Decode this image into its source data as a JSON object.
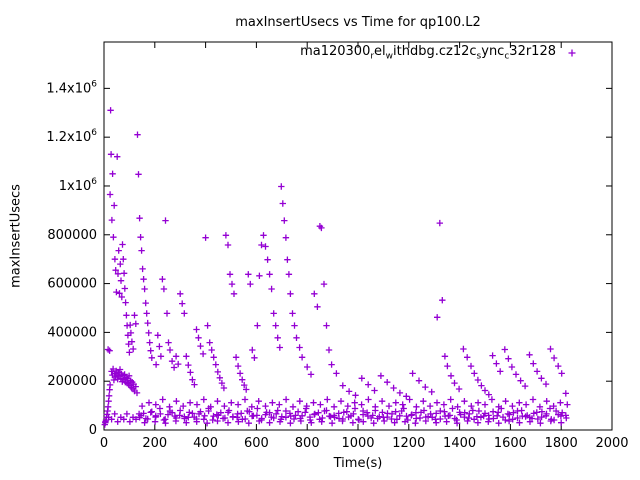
{
  "chart_data": {
    "type": "scatter",
    "title": "maxInsertUsecs vs Time for qp100.L2",
    "xlabel": "Time(s)",
    "ylabel": "maxInsertUsecs",
    "xlim": [
      0,
      2000
    ],
    "ylim": [
      0,
      1590000
    ],
    "grid": false,
    "legend_position": "top-center-inside",
    "series_color": "#9400d3",
    "marker": "plus",
    "x_ticks": [
      {
        "v": 0,
        "label": "0"
      },
      {
        "v": 200,
        "label": "200"
      },
      {
        "v": 400,
        "label": "400"
      },
      {
        "v": 600,
        "label": "600"
      },
      {
        "v": 800,
        "label": "800"
      },
      {
        "v": 1000,
        "label": "1000"
      },
      {
        "v": 1200,
        "label": "1200"
      },
      {
        "v": 1400,
        "label": "1400"
      },
      {
        "v": 1600,
        "label": "1600"
      },
      {
        "v": 1800,
        "label": "1800"
      },
      {
        "v": 2000,
        "label": "2000"
      }
    ],
    "y_ticks": [
      {
        "v": 0,
        "label": "0"
      },
      {
        "v": 200000,
        "label": "200000"
      },
      {
        "v": 400000,
        "label": "400000"
      },
      {
        "v": 600000,
        "label": "600000"
      },
      {
        "v": 800000,
        "label": "800000"
      },
      {
        "v": 1000000,
        "label": "1x10^6"
      },
      {
        "v": 1200000,
        "label": "1.2x10^6"
      },
      {
        "v": 1400000,
        "label": "1.4x10^6"
      }
    ],
    "legend": {
      "label_plain": "ma120300_rel_withdbg.cz12c_sync_c32r128",
      "label_parts": [
        {
          "t": "ma120300"
        },
        {
          "s": "r"
        },
        {
          "t": "el"
        },
        {
          "s": "w"
        },
        {
          "t": "ithdbg.cz12c"
        },
        {
          "s": "s"
        },
        {
          "t": "ync"
        },
        {
          "s": "c"
        },
        {
          "t": "32r128"
        }
      ]
    },
    "points": [
      [
        3,
        22000
      ],
      [
        5,
        30000
      ],
      [
        8,
        40000
      ],
      [
        10,
        52000
      ],
      [
        12,
        64000
      ],
      [
        14,
        78000
      ],
      [
        16,
        95000
      ],
      [
        18,
        118000
      ],
      [
        20,
        140000
      ],
      [
        22,
        165000
      ],
      [
        24,
        185000
      ],
      [
        16,
        330000
      ],
      [
        22,
        325000
      ],
      [
        30,
        240000
      ],
      [
        33,
        225000
      ],
      [
        36,
        250000
      ],
      [
        39,
        205000
      ],
      [
        42,
        232000
      ],
      [
        45,
        218000
      ],
      [
        48,
        242000
      ],
      [
        51,
        226000
      ],
      [
        54,
        208000
      ],
      [
        57,
        236000
      ],
      [
        60,
        221000
      ],
      [
        63,
        248000
      ],
      [
        66,
        212000
      ],
      [
        69,
        230000
      ],
      [
        72,
        198000
      ],
      [
        75,
        224000
      ],
      [
        78,
        206000
      ],
      [
        81,
        228000
      ],
      [
        84,
        196000
      ],
      [
        87,
        215000
      ],
      [
        90,
        192000
      ],
      [
        93,
        210000
      ],
      [
        96,
        188000
      ],
      [
        99,
        222000
      ],
      [
        102,
        182000
      ],
      [
        105,
        202000
      ],
      [
        108,
        174000
      ],
      [
        111,
        196000
      ],
      [
        114,
        168000
      ],
      [
        117,
        188000
      ],
      [
        120,
        160000
      ],
      [
        125,
        178000
      ],
      [
        130,
        152000
      ],
      [
        24,
        965000
      ],
      [
        26,
        1310000
      ],
      [
        28,
        1130000
      ],
      [
        31,
        860000
      ],
      [
        34,
        1050000
      ],
      [
        37,
        790000
      ],
      [
        40,
        920000
      ],
      [
        43,
        700000
      ],
      [
        46,
        655000
      ],
      [
        49,
        565000
      ],
      [
        52,
        1120000
      ],
      [
        55,
        640000
      ],
      [
        58,
        735000
      ],
      [
        61,
        560000
      ],
      [
        64,
        680000
      ],
      [
        67,
        612000
      ],
      [
        70,
        545000
      ],
      [
        73,
        760000
      ],
      [
        76,
        700000
      ],
      [
        79,
        642000
      ],
      [
        82,
        580000
      ],
      [
        85,
        522000
      ],
      [
        88,
        470000
      ],
      [
        91,
        428000
      ],
      [
        94,
        388000
      ],
      [
        97,
        352000
      ],
      [
        100,
        318000
      ],
      [
        103,
        430000
      ],
      [
        106,
        398000
      ],
      [
        110,
        362000
      ],
      [
        115,
        332000
      ],
      [
        120,
        470000
      ],
      [
        125,
        435000
      ],
      [
        132,
        1210000
      ],
      [
        136,
        1048000
      ],
      [
        140,
        868000
      ],
      [
        144,
        790000
      ],
      [
        148,
        735000
      ],
      [
        152,
        660000
      ],
      [
        156,
        618000
      ],
      [
        160,
        578000
      ],
      [
        164,
        520000
      ],
      [
        168,
        478000
      ],
      [
        172,
        438000
      ],
      [
        176,
        398000
      ],
      [
        180,
        358000
      ],
      [
        184,
        325000
      ],
      [
        188,
        296000
      ],
      [
        205,
        268000
      ],
      [
        212,
        388000
      ],
      [
        218,
        342000
      ],
      [
        224,
        302000
      ],
      [
        230,
        618000
      ],
      [
        236,
        578000
      ],
      [
        242,
        858000
      ],
      [
        248,
        478000
      ],
      [
        254,
        358000
      ],
      [
        260,
        328000
      ],
      [
        268,
        282000
      ],
      [
        276,
        256000
      ],
      [
        284,
        302000
      ],
      [
        292,
        270000
      ],
      [
        300,
        558000
      ],
      [
        308,
        518000
      ],
      [
        316,
        478000
      ],
      [
        324,
        302000
      ],
      [
        332,
        266000
      ],
      [
        340,
        236000
      ],
      [
        348,
        206000
      ],
      [
        356,
        186000
      ],
      [
        364,
        412000
      ],
      [
        372,
        378000
      ],
      [
        380,
        344000
      ],
      [
        390,
        312000
      ],
      [
        400,
        788000
      ],
      [
        408,
        428000
      ],
      [
        416,
        358000
      ],
      [
        424,
        328000
      ],
      [
        432,
        298000
      ],
      [
        440,
        268000
      ],
      [
        448,
        238000
      ],
      [
        456,
        214000
      ],
      [
        464,
        192000
      ],
      [
        472,
        172000
      ],
      [
        480,
        798000
      ],
      [
        488,
        758000
      ],
      [
        496,
        638000
      ],
      [
        504,
        598000
      ],
      [
        512,
        558000
      ],
      [
        520,
        298000
      ],
      [
        528,
        262000
      ],
      [
        536,
        232000
      ],
      [
        544,
        206000
      ],
      [
        552,
        184000
      ],
      [
        560,
        166000
      ],
      [
        568,
        638000
      ],
      [
        576,
        598000
      ],
      [
        584,
        328000
      ],
      [
        592,
        296000
      ],
      [
        604,
        428000
      ],
      [
        612,
        632000
      ],
      [
        620,
        758000
      ],
      [
        628,
        798000
      ],
      [
        636,
        752000
      ],
      [
        644,
        698000
      ],
      [
        652,
        638000
      ],
      [
        660,
        578000
      ],
      [
        668,
        478000
      ],
      [
        676,
        428000
      ],
      [
        684,
        378000
      ],
      [
        692,
        338000
      ],
      [
        698,
        998000
      ],
      [
        704,
        928000
      ],
      [
        710,
        858000
      ],
      [
        716,
        788000
      ],
      [
        722,
        698000
      ],
      [
        728,
        638000
      ],
      [
        734,
        558000
      ],
      [
        742,
        478000
      ],
      [
        750,
        428000
      ],
      [
        758,
        378000
      ],
      [
        770,
        338000
      ],
      [
        780,
        298000
      ],
      [
        800,
        258000
      ],
      [
        815,
        228000
      ],
      [
        828,
        558000
      ],
      [
        840,
        505000
      ],
      [
        850,
        835000
      ],
      [
        856,
        828000
      ],
      [
        866,
        598000
      ],
      [
        876,
        428000
      ],
      [
        886,
        328000
      ],
      [
        896,
        268000
      ],
      [
        915,
        232000
      ],
      [
        940,
        182000
      ],
      [
        965,
        158000
      ],
      [
        990,
        142000
      ],
      [
        1015,
        212000
      ],
      [
        1040,
        186000
      ],
      [
        1065,
        162000
      ],
      [
        1090,
        222000
      ],
      [
        1115,
        196000
      ],
      [
        1140,
        172000
      ],
      [
        1165,
        152000
      ],
      [
        1190,
        138000
      ],
      [
        1215,
        232000
      ],
      [
        1240,
        202000
      ],
      [
        1265,
        176000
      ],
      [
        1290,
        156000
      ],
      [
        1312,
        462000
      ],
      [
        1322,
        848000
      ],
      [
        1332,
        532000
      ],
      [
        1342,
        302000
      ],
      [
        1352,
        262000
      ],
      [
        1366,
        222000
      ],
      [
        1380,
        192000
      ],
      [
        1398,
        168000
      ],
      [
        1415,
        332000
      ],
      [
        1430,
        298000
      ],
      [
        1445,
        262000
      ],
      [
        1458,
        232000
      ],
      [
        1472,
        205000
      ],
      [
        1486,
        182000
      ],
      [
        1500,
        162000
      ],
      [
        1515,
        145000
      ],
      [
        1530,
        305000
      ],
      [
        1545,
        272000
      ],
      [
        1560,
        240000
      ],
      [
        1578,
        330000
      ],
      [
        1592,
        292000
      ],
      [
        1606,
        258000
      ],
      [
        1622,
        228000
      ],
      [
        1640,
        202000
      ],
      [
        1658,
        180000
      ],
      [
        1675,
        308000
      ],
      [
        1690,
        272000
      ],
      [
        1705,
        240000
      ],
      [
        1722,
        212000
      ],
      [
        1740,
        188000
      ],
      [
        1758,
        332000
      ],
      [
        1772,
        295000
      ],
      [
        1788,
        262000
      ],
      [
        1802,
        232000
      ],
      [
        1818,
        150000
      ]
    ],
    "noise_bands": [
      {
        "x_start": 140,
        "x_end": 1830,
        "x_step": 16,
        "y_cycle": [
          52000,
          68000,
          45000,
          75000,
          58000,
          88000,
          41000,
          63000,
          71000,
          49000,
          80000,
          55000
        ]
      },
      {
        "x_start": 150,
        "x_end": 1826,
        "x_step": 27,
        "y_cycle": [
          98000,
          112000,
          104000,
          125000,
          95000,
          118000
        ]
      },
      {
        "x_start": 160,
        "x_end": 1822,
        "x_step": 41,
        "y_cycle": [
          30000,
          34000,
          28000,
          37000
        ]
      },
      {
        "x_start": 146,
        "x_end": 1828,
        "x_step": 19,
        "y_cycle": [
          60000,
          47000,
          72000,
          53000,
          66000,
          44000,
          78000,
          57000
        ]
      },
      {
        "x_start": 6,
        "x_end": 138,
        "x_step": 12,
        "y_cycle": [
          34000,
          52000,
          44000,
          66000
        ]
      }
    ]
  }
}
